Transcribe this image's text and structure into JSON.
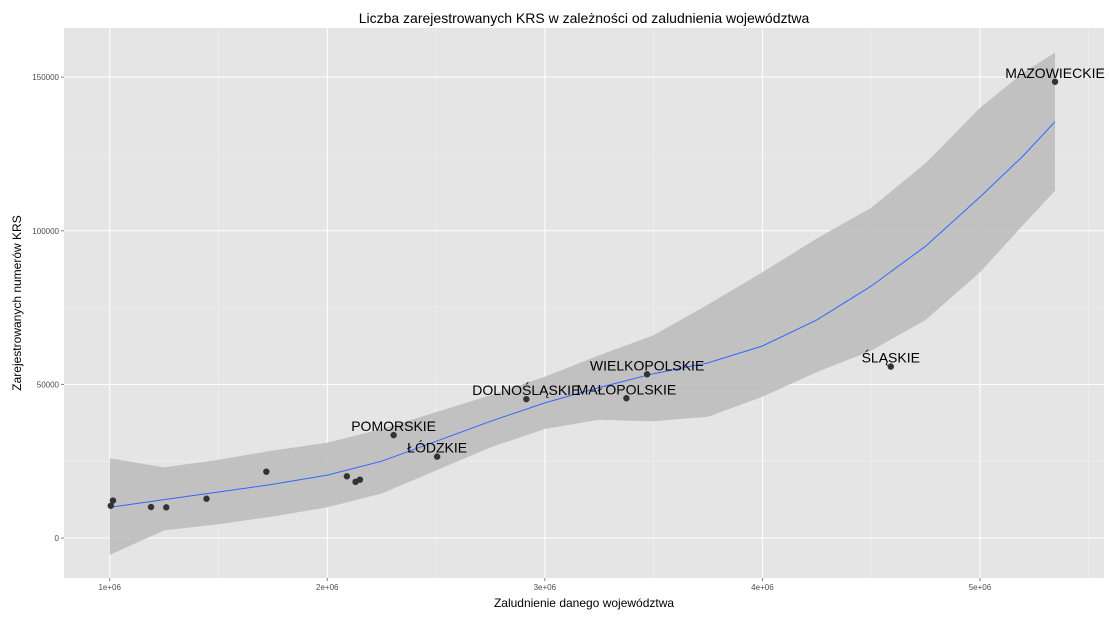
{
  "chart_data": {
    "type": "scatter",
    "title": "Liczba zarejestrowanych KRS w zależności od zaludnienia województwa",
    "xlabel": "Zaludnienie danego województwa",
    "ylabel": "Zarejestrowanych numerów KRS",
    "xlim": [
      790000,
      5570000
    ],
    "ylim": [
      -13000,
      166000
    ],
    "x_ticks": [
      {
        "value": 1000000,
        "label": "1e+06"
      },
      {
        "value": 2000000,
        "label": "2e+06"
      },
      {
        "value": 3000000,
        "label": "3e+06"
      },
      {
        "value": 4000000,
        "label": "4e+06"
      },
      {
        "value": 5000000,
        "label": "5e+06"
      }
    ],
    "y_ticks": [
      {
        "value": 0,
        "label": "0"
      },
      {
        "value": 50000,
        "label": "50000"
      },
      {
        "value": 100000,
        "label": "100000"
      },
      {
        "value": 150000,
        "label": "150000"
      }
    ],
    "grid": true,
    "background_color": "#e5e5e5",
    "grid_color": "#ffffff",
    "point_color": "#333333",
    "smooth_line_color": "#3366ff",
    "ribbon_color": "#bdbdbd",
    "points": [
      {
        "x": 1005000,
        "y": 10500,
        "label": ""
      },
      {
        "x": 1015000,
        "y": 12200,
        "label": ""
      },
      {
        "x": 1190000,
        "y": 10100,
        "label": ""
      },
      {
        "x": 1260000,
        "y": 10000,
        "label": ""
      },
      {
        "x": 1445000,
        "y": 12800,
        "label": ""
      },
      {
        "x": 1720000,
        "y": 21600,
        "label": ""
      },
      {
        "x": 2090000,
        "y": 20100,
        "label": ""
      },
      {
        "x": 2130000,
        "y": 18300,
        "label": ""
      },
      {
        "x": 2150000,
        "y": 19000,
        "label": ""
      },
      {
        "x": 2305000,
        "y": 33500,
        "label": "POMORSKIE"
      },
      {
        "x": 2505000,
        "y": 26500,
        "label": "ŁÓDZKIE"
      },
      {
        "x": 2915000,
        "y": 45200,
        "label": "DOLNOŚLĄSKIE"
      },
      {
        "x": 3375000,
        "y": 45500,
        "label": "MAŁOPOLSKIE"
      },
      {
        "x": 3470000,
        "y": 53300,
        "label": "WIELKOPOLSKIE"
      },
      {
        "x": 4590000,
        "y": 55800,
        "label": "ŚLĄSKIE"
      },
      {
        "x": 5345000,
        "y": 148500,
        "label": "MAZOWIECKIE"
      }
    ],
    "smooth": {
      "x": [
        1000000,
        1250000,
        1500000,
        1750000,
        2000000,
        2250000,
        2500000,
        2750000,
        3000000,
        3250000,
        3500000,
        3750000,
        4000000,
        4250000,
        4500000,
        4750000,
        5000000,
        5200000,
        5345000
      ],
      "y": [
        10000,
        12500,
        15000,
        17500,
        20500,
        25000,
        31500,
        38000,
        44000,
        49000,
        53500,
        57000,
        62500,
        71000,
        82000,
        95000,
        111000,
        124500,
        135500
      ],
      "ymin": [
        -5500,
        2500,
        4500,
        7000,
        10000,
        14500,
        22000,
        29500,
        35500,
        38500,
        38000,
        39500,
        46000,
        54000,
        61000,
        71000,
        86500,
        102000,
        113000
      ],
      "ymax": [
        26000,
        23000,
        25500,
        28500,
        31000,
        35500,
        41000,
        46500,
        52500,
        59500,
        66000,
        76000,
        86500,
        97500,
        107500,
        122000,
        140000,
        151500,
        158000
      ]
    }
  }
}
